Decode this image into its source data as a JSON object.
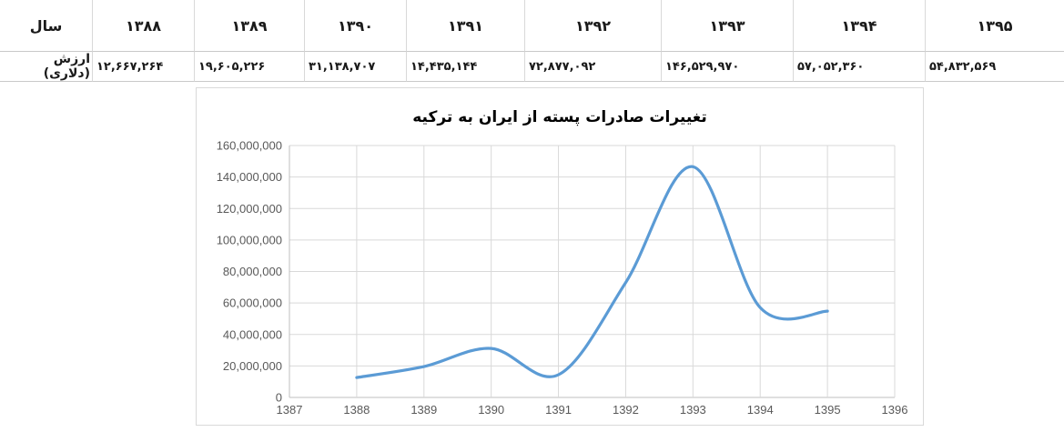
{
  "table": {
    "header_label": "سال",
    "row_label": "ارزش (دلاری)",
    "columns": [
      {
        "year": "۱۳۸۸",
        "value": "۱۲,۶۶۷,۲۶۴"
      },
      {
        "year": "۱۳۸۹",
        "value": "۱۹,۶۰۵,۲۲۶"
      },
      {
        "year": "۱۳۹۰",
        "value": "۳۱,۱۳۸,۷۰۷"
      },
      {
        "year": "۱۳۹۱",
        "value": "۱۴,۴۳۵,۱۴۴"
      },
      {
        "year": "۱۳۹۲",
        "value": "۷۲,۸۷۷,۰۹۲"
      },
      {
        "year": "۱۳۹۳",
        "value": "۱۴۶,۵۲۹,۹۷۰"
      },
      {
        "year": "۱۳۹۴",
        "value": "۵۷,۰۵۲,۳۶۰"
      },
      {
        "year": "۱۳۹۵",
        "value": "۵۴,۸۳۲,۵۶۹"
      }
    ]
  },
  "chart_data": {
    "type": "line",
    "title": "تغییرات صادرات پسته از ایران به ترکیه",
    "x": [
      1388,
      1389,
      1390,
      1391,
      1392,
      1393,
      1394,
      1395
    ],
    "values": [
      12667264,
      19605226,
      31138707,
      14435144,
      72877092,
      146529970,
      57052360,
      54832569
    ],
    "xlim": [
      1387,
      1396
    ],
    "ylim": [
      0,
      160000000
    ],
    "x_ticks": [
      1387,
      1388,
      1389,
      1390,
      1391,
      1392,
      1393,
      1394,
      1395,
      1396
    ],
    "y_ticks": [
      0,
      20000000,
      40000000,
      60000000,
      80000000,
      100000000,
      120000000,
      140000000,
      160000000
    ],
    "y_tick_labels": [
      "0",
      "20,000,000",
      "40,000,000",
      "60,000,000",
      "80,000,000",
      "100,000,000",
      "120,000,000",
      "140,000,000",
      "160,000,000"
    ],
    "xlabel": "",
    "ylabel": "",
    "legend": "none",
    "grid": true,
    "smooth": true,
    "line_color": "#5B9BD5",
    "grid_color": "#d9d9d9",
    "axis_color": "#bfbfbf",
    "tick_label_color": "#595959"
  }
}
